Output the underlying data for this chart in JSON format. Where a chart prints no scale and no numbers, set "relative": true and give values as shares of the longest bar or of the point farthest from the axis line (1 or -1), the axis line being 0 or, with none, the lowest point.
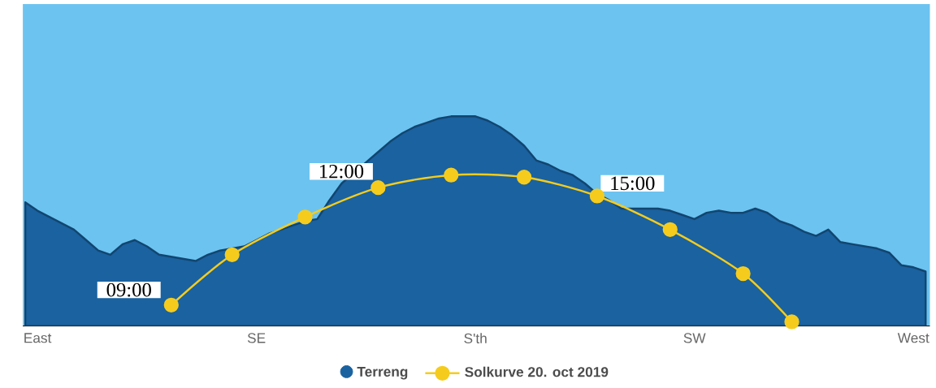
{
  "chart_data": {
    "type": "area",
    "relative": true,
    "legend": "bottom",
    "grid": false,
    "categories": [
      null,
      "East",
      null,
      null,
      null,
      null,
      null,
      null,
      null,
      null,
      null,
      null,
      null,
      null,
      null,
      null,
      null,
      null,
      null,
      "SE",
      null,
      null,
      null,
      null,
      null,
      null,
      null,
      null,
      null,
      null,
      null,
      null,
      null,
      null,
      null,
      null,
      null,
      "S'th",
      null,
      null,
      null,
      null,
      null,
      null,
      null,
      null,
      null,
      null,
      null,
      null,
      null,
      null,
      null,
      null,
      null,
      "SW",
      null,
      null,
      null,
      null,
      null,
      null,
      null,
      null,
      null,
      null,
      null,
      null,
      null,
      null,
      null,
      null,
      null,
      "West",
      null
    ],
    "series": [
      {
        "name": "Terreng",
        "color": "#1a62a0",
        "values": [
          0.59,
          0.55,
          0.52,
          0.49,
          0.46,
          0.41,
          0.36,
          0.34,
          0.39,
          0.41,
          0.38,
          0.34,
          0.33,
          0.32,
          0.31,
          0.34,
          0.36,
          0.37,
          0.38,
          0.41,
          0.44,
          0.46,
          0.48,
          0.5,
          0.51,
          0.6,
          0.68,
          null,
          0.78,
          0.83,
          0.88,
          0.92,
          0.95,
          0.97,
          0.99,
          1.0,
          1.0,
          1.0,
          0.98,
          0.95,
          0.91,
          0.86,
          0.79,
          0.77,
          0.74,
          0.72,
          0.68,
          0.63,
          0.6,
          0.56,
          0.56,
          0.56,
          0.56,
          0.55,
          0.53,
          0.51,
          0.54,
          0.55,
          0.54,
          0.54,
          0.56,
          0.54,
          0.5,
          0.48,
          0.45,
          0.43,
          0.46,
          0.4,
          0.39,
          0.38,
          0.37,
          0.35,
          0.29,
          0.28,
          0.26
        ]
      },
      {
        "name": "Solkurve 20. oct 2019",
        "type": "line",
        "color": "#f5cc1d",
        "marker": "circle",
        "line_style": "solid",
        "values": [
          null,
          null,
          null,
          null,
          null,
          null,
          null,
          null,
          null,
          null,
          null,
          null,
          0.1,
          null,
          null,
          null,
          null,
          0.34,
          null,
          null,
          null,
          null,
          null,
          0.52,
          null,
          null,
          null,
          null,
          null,
          0.66,
          null,
          null,
          null,
          null,
          null,
          0.72,
          null,
          null,
          null,
          null,
          null,
          0.71,
          null,
          null,
          null,
          null,
          null,
          0.62,
          null,
          null,
          null,
          null,
          null,
          0.46,
          null,
          null,
          null,
          null,
          null,
          0.25,
          null,
          null,
          null,
          0.02,
          null,
          null,
          null,
          null,
          null,
          null,
          null,
          null,
          null,
          null,
          null
        ]
      }
    ],
    "annotations": [
      "09:00",
      "12:00",
      "15:00"
    ]
  }
}
